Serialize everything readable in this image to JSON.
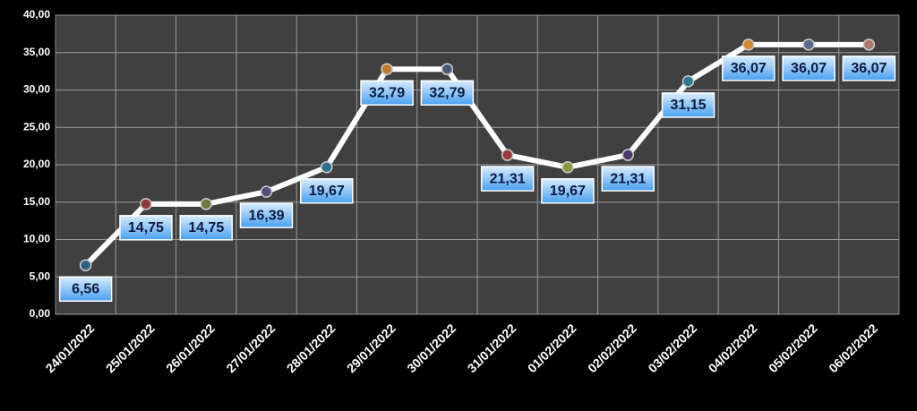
{
  "chart_data": {
    "type": "line",
    "categories": [
      "24/01/2022",
      "25/01/2022",
      "26/01/2022",
      "27/01/2022",
      "28/01/2022",
      "29/01/2022",
      "30/01/2022",
      "31/01/2022",
      "01/02/2022",
      "02/02/2022",
      "03/02/2022",
      "04/02/2022",
      "05/02/2022",
      "06/02/2022"
    ],
    "values": [
      6.56,
      14.75,
      14.75,
      16.39,
      19.67,
      32.79,
      32.79,
      21.31,
      19.67,
      21.31,
      31.15,
      36.07,
      36.07,
      36.07
    ],
    "value_labels": [
      "6,56",
      "14,75",
      "14,75",
      "16,39",
      "19,67",
      "32,79",
      "32,79",
      "21,31",
      "19,67",
      "21,31",
      "31,15",
      "36,07",
      "36,07",
      "36,07"
    ],
    "color": "#ffffff",
    "point_colors": [
      "#2f5f80",
      "#8a3a3a",
      "#6a7a3a",
      "#5a4a7a",
      "#2f7090",
      "#c07a30",
      "#4a5a7a",
      "#a03a3a",
      "#8a9a3a",
      "#4a3a6a",
      "#2f7a90",
      "#d08a30",
      "#5a6a8a",
      "#b07a6a"
    ],
    "ylim": [
      0,
      40
    ],
    "yticks": [
      {
        "value": 0,
        "label": "0,00"
      },
      {
        "value": 5,
        "label": "5,00"
      },
      {
        "value": 10,
        "label": "10,00"
      },
      {
        "value": 15,
        "label": "15,00"
      },
      {
        "value": 20,
        "label": "20,00"
      },
      {
        "value": 25,
        "label": "25,00"
      },
      {
        "value": 30,
        "label": "30,00"
      },
      {
        "value": 35,
        "label": "35,00"
      },
      {
        "value": 40,
        "label": "40,00"
      }
    ],
    "grid": true
  }
}
